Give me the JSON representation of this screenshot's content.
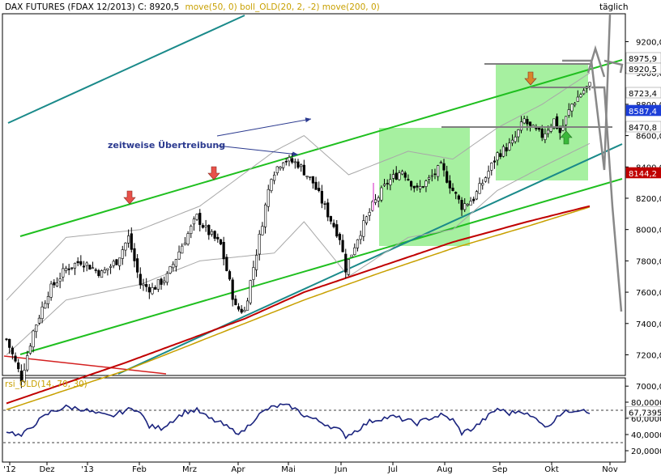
{
  "header": {
    "title": "DAX FUTURES (FDAX 12/2013) C: 8920,5",
    "indicators": "move(50, 0) boll_OLD(20, 2, -2) move(200, 0)",
    "period": "täglich",
    "rsi_label": "rsi_OLD(14, 70, 30)"
  },
  "chart_data": [
    {
      "type": "candlestick",
      "title": "DAX FUTURES (FDAX 12/2013) C: 8920,5",
      "x_labels": [
        "'12",
        "Dez",
        "'13",
        "Feb",
        "Mrz",
        "Apr",
        "Mai",
        "Jun",
        "Jul",
        "Aug",
        "Sep",
        "Okt",
        "Nov"
      ],
      "y_ticks": [
        "9200,0",
        "9000,0",
        "8800,0",
        "8600,0",
        "8400,0",
        "8200,0",
        "8000,0",
        "7800,0",
        "7600,0",
        "7400,0",
        "7200,0",
        "7000,0"
      ],
      "ylim": [
        6840,
        9430
      ],
      "price_path": [
        [
          0,
          7300
        ],
        [
          5,
          7050
        ],
        [
          9,
          7350
        ],
        [
          14,
          7600
        ],
        [
          20,
          7750
        ],
        [
          25,
          7800
        ],
        [
          32,
          7720
        ],
        [
          37,
          7800
        ],
        [
          41,
          7950
        ],
        [
          45,
          7650
        ],
        [
          49,
          7620
        ],
        [
          54,
          7700
        ],
        [
          59,
          7900
        ],
        [
          64,
          8080
        ],
        [
          67,
          8000
        ],
        [
          72,
          7900
        ],
        [
          77,
          7500
        ],
        [
          80,
          7480
        ],
        [
          85,
          7950
        ],
        [
          89,
          8350
        ],
        [
          93,
          8450
        ],
        [
          98,
          8420
        ],
        [
          103,
          8300
        ],
        [
          108,
          8100
        ],
        [
          112,
          7950
        ],
        [
          114,
          7750
        ],
        [
          118,
          7950
        ],
        [
          123,
          8150
        ],
        [
          128,
          8300
        ],
        [
          133,
          8380
        ],
        [
          138,
          8250
        ],
        [
          142,
          8320
        ],
        [
          146,
          8400
        ],
        [
          150,
          8250
        ],
        [
          153,
          8150
        ],
        [
          157,
          8200
        ],
        [
          160,
          8300
        ],
        [
          165,
          8480
        ],
        [
          170,
          8550
        ],
        [
          174,
          8700
        ],
        [
          176,
          8650
        ],
        [
          180,
          8600
        ],
        [
          184,
          8700
        ],
        [
          186,
          8620
        ],
        [
          190,
          8800
        ],
        [
          194,
          8890
        ],
        [
          196,
          8920.5
        ]
      ],
      "series": [
        {
          "name": "move(50, 0)",
          "color": "#c8a000",
          "points": [
            [
              0,
              6850
            ],
            [
              40,
              7100
            ],
            [
              80,
              7400
            ],
            [
              100,
              7550
            ],
            [
              125,
              7720
            ],
            [
              150,
              7880
            ],
            [
              175,
              8020
            ],
            [
              196,
              8144.2
            ]
          ]
        },
        {
          "name": "move(200, 0)",
          "color": "#c00000",
          "points": [
            [
              0,
              6890
            ],
            [
              40,
              7150
            ],
            [
              80,
              7430
            ],
            [
              100,
              7600
            ],
            [
              125,
              7760
            ],
            [
              150,
              7920
            ],
            [
              175,
              8050
            ],
            [
              196,
              8150
            ]
          ]
        },
        {
          "name": "boll_OLD(20, 2, -2)",
          "color": "#a8a8a8",
          "upper": [
            [
              0,
              7550
            ],
            [
              20,
              7950
            ],
            [
              45,
              8000
            ],
            [
              65,
              8150
            ],
            [
              90,
              8500
            ],
            [
              100,
              8600
            ],
            [
              115,
              8350
            ],
            [
              135,
              8500
            ],
            [
              150,
              8450
            ],
            [
              165,
              8650
            ],
            [
              180,
              8800
            ],
            [
              196,
              9000
            ]
          ],
          "lower": [
            [
              0,
              7200
            ],
            [
              20,
              7550
            ],
            [
              45,
              7650
            ],
            [
              65,
              7800
            ],
            [
              90,
              7850
            ],
            [
              100,
              8050
            ],
            [
              115,
              7700
            ],
            [
              135,
              7950
            ],
            [
              150,
              8000
            ],
            [
              165,
              8250
            ],
            [
              180,
              8400
            ],
            [
              196,
              8550
            ]
          ]
        }
      ],
      "price_boxes": [
        {
          "label": "8975,9",
          "value": 8975.9,
          "color": "#ffffff"
        },
        {
          "label": "8920,5",
          "value": 8920.5,
          "color": "#ffffff"
        },
        {
          "label": "8723,4",
          "value": 8723.4,
          "color": "#ffffff"
        },
        {
          "label": "8587,4",
          "value": 8587.4,
          "color": "#1c3ed8"
        },
        {
          "label": "8470,8",
          "value": 8470.8,
          "color": "#ffffff"
        },
        {
          "label": "8144,2",
          "value": 8144.2,
          "color": "#c00000"
        }
      ],
      "annotations": [
        "zeitweise Übertreibung"
      ],
      "grid": false
    },
    {
      "type": "line",
      "title": "rsi_OLD(14, 70, 30)",
      "y_ticks": [
        "80,0000",
        "60,0000",
        "40,0000",
        "20,0000"
      ],
      "ylim": [
        13,
        90
      ],
      "reference_lines": [
        70,
        30
      ],
      "last_value_label": "67,7395",
      "values_path": [
        [
          0,
          45
        ],
        [
          5,
          38
        ],
        [
          10,
          55
        ],
        [
          15,
          68
        ],
        [
          20,
          74
        ],
        [
          25,
          72
        ],
        [
          30,
          66
        ],
        [
          35,
          62
        ],
        [
          40,
          70
        ],
        [
          44,
          72
        ],
        [
          48,
          50
        ],
        [
          52,
          48
        ],
        [
          56,
          58
        ],
        [
          60,
          68
        ],
        [
          64,
          70
        ],
        [
          68,
          60
        ],
        [
          72,
          54
        ],
        [
          76,
          45
        ],
        [
          79,
          42
        ],
        [
          84,
          62
        ],
        [
          88,
          72
        ],
        [
          92,
          76
        ],
        [
          96,
          74
        ],
        [
          100,
          64
        ],
        [
          104,
          58
        ],
        [
          108,
          52
        ],
        [
          112,
          45
        ],
        [
          114,
          38
        ],
        [
          118,
          46
        ],
        [
          122,
          56
        ],
        [
          126,
          60
        ],
        [
          130,
          62
        ],
        [
          134,
          58
        ],
        [
          138,
          54
        ],
        [
          142,
          60
        ],
        [
          146,
          64
        ],
        [
          150,
          58
        ],
        [
          153,
          42
        ],
        [
          157,
          48
        ],
        [
          161,
          60
        ],
        [
          165,
          72
        ],
        [
          169,
          66
        ],
        [
          173,
          70
        ],
        [
          176,
          62
        ],
        [
          179,
          58
        ],
        [
          182,
          48
        ],
        [
          185,
          64
        ],
        [
          190,
          70
        ],
        [
          194,
          72
        ],
        [
          196,
          67.7395
        ]
      ]
    }
  ],
  "colors": {
    "ma50": "#c8a000",
    "ma200": "#c00000",
    "bollinger": "#a8a8a8",
    "trend_green": "#1fbf1f",
    "trend_teal": "#1a8a8a",
    "zone_green": "#a6f0a0",
    "arrow_red": "#e8514a",
    "arrow_orange": "#d9862a",
    "arrow_green": "#3ab83a",
    "resistance": "#808080",
    "rsi_line": "#1a237e"
  }
}
